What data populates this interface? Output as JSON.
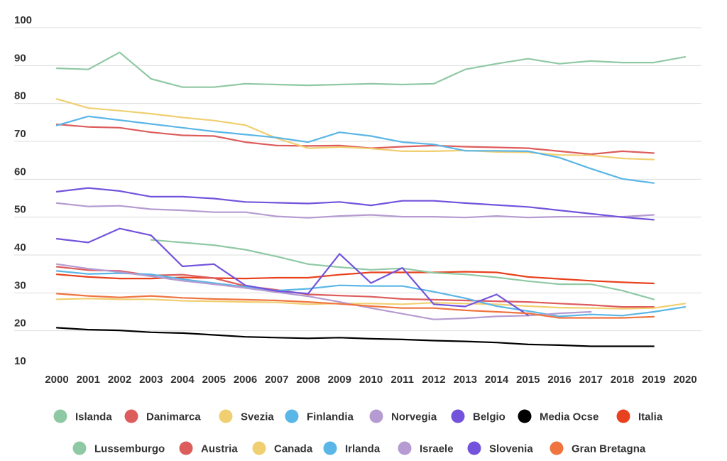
{
  "chart_data": {
    "type": "line",
    "title": "",
    "xlabel": "",
    "ylabel": "",
    "ylim": [
      10,
      100
    ],
    "yticks": [
      "100",
      "90",
      "80",
      "70",
      "60",
      "50",
      "40",
      "30",
      "20",
      "10"
    ],
    "x": [
      "2000",
      "2001",
      "2002",
      "2003",
      "2004",
      "2005",
      "2006",
      "2007",
      "2008",
      "2009",
      "2010",
      "2011",
      "2012",
      "2013",
      "2014",
      "2015",
      "2016",
      "2017",
      "2018",
      "2019",
      "2020"
    ],
    "grid": true,
    "legend_position": "bottom",
    "series": [
      {
        "name": "Islanda",
        "color": "#8fc9a4",
        "values": [
          89.3,
          89,
          93.5,
          86.5,
          84.3,
          84.3,
          85.2,
          85,
          84.8,
          85,
          85.2,
          85,
          85.2,
          89,
          90.5,
          91.8,
          90.5,
          91.2,
          90.8,
          90.8,
          92.3
        ]
      },
      {
        "name": "Danimarca",
        "color": "#dd5c5c",
        "values": [
          74.5,
          73.8,
          73.6,
          72.4,
          71.6,
          71.4,
          69.8,
          68.9,
          68.8,
          68.9,
          68.2,
          68.6,
          68.9,
          68.6,
          68.4,
          68.2,
          67.4,
          66.6,
          67.4,
          66.9,
          null
        ]
      },
      {
        "name": "Svezia",
        "color": "#f0cf70",
        "values": [
          81.2,
          78.8,
          78.1,
          77.3,
          76.3,
          75.5,
          74.3,
          70.8,
          68.2,
          68.5,
          68.1,
          67.4,
          67.4,
          67.6,
          67.2,
          67.1,
          66.4,
          66.3,
          65.5,
          65.2,
          null
        ]
      },
      {
        "name": "Finlandia",
        "color": "#5ab6e6",
        "values": [
          74.2,
          76.6,
          75.6,
          74.6,
          73.6,
          72.6,
          71.8,
          71,
          69.8,
          72.4,
          71.4,
          69.8,
          69.2,
          67.5,
          67.5,
          67.4,
          65.7,
          62.8,
          60.1,
          59,
          null
        ]
      },
      {
        "name": "Norvegia",
        "color": "#b59bd1",
        "values": [
          53.7,
          52.8,
          53,
          52.1,
          51.8,
          51.3,
          51.3,
          50.2,
          49.8,
          50.3,
          50.6,
          50.1,
          50.1,
          49.9,
          50.3,
          49.9,
          50.1,
          50.1,
          50.1,
          50.6,
          null
        ]
      },
      {
        "name": "Belgio",
        "color": "#7353dc",
        "values": [
          56.7,
          57.7,
          56.9,
          55.4,
          55.4,
          54.9,
          54,
          53.8,
          53.6,
          54,
          53.1,
          54.3,
          54.3,
          53.7,
          53.2,
          52.7,
          51.8,
          50.9,
          50,
          49.3,
          null
        ]
      },
      {
        "name": "Media Ocse",
        "color": "#000000",
        "values": [
          20.8,
          20.3,
          20.1,
          19.6,
          19.4,
          18.9,
          18.4,
          18.2,
          18,
          18.2,
          17.9,
          17.7,
          17.4,
          17.2,
          16.9,
          16.4,
          16.2,
          15.9,
          15.9,
          15.9,
          null
        ]
      },
      {
        "name": "Italia",
        "color": "#e8411d",
        "values": [
          34.9,
          34.2,
          33.8,
          33.8,
          34.1,
          33.9,
          33.8,
          34,
          34,
          34.8,
          35.4,
          35.4,
          35.4,
          35.6,
          35.4,
          34.2,
          33.7,
          33.2,
          32.8,
          32.5,
          null
        ]
      },
      {
        "name": "Lussemburgo",
        "color": "#8fc9a4",
        "values": [
          null,
          null,
          null,
          44,
          43.3,
          42.6,
          41.4,
          39.6,
          37.6,
          36.8,
          36.1,
          36.5,
          35.3,
          34.9,
          34.1,
          33.1,
          32.3,
          32.3,
          30.6,
          28.3,
          null
        ]
      },
      {
        "name": "Austria",
        "color": "#dd5c5c",
        "values": [
          36.9,
          36,
          35.8,
          34.6,
          34.8,
          33.9,
          31.8,
          30.8,
          29.6,
          29.3,
          29,
          28.4,
          28.2,
          28,
          27.8,
          27.6,
          27.2,
          26.8,
          26.3,
          26.3,
          null
        ]
      },
      {
        "name": "Canada",
        "color": "#f0cf70",
        "values": [
          28.3,
          28.5,
          28.3,
          28.3,
          27.9,
          27.8,
          27.6,
          27.5,
          27,
          27.2,
          27.2,
          27,
          27.4,
          27.2,
          27,
          26.5,
          26.1,
          26,
          25.8,
          26,
          27.2
        ]
      },
      {
        "name": "Irlanda",
        "color": "#5ab6e6",
        "values": [
          35.8,
          35,
          35.2,
          34.9,
          33.6,
          32.6,
          31.6,
          30.6,
          31.1,
          32,
          31.8,
          31.8,
          30.3,
          28.6,
          26.5,
          25.2,
          23.8,
          24.3,
          24,
          25,
          26.3
        ]
      },
      {
        "name": "Israele",
        "color": "#b59bd1",
        "values": [
          37.6,
          36.4,
          35.5,
          34.4,
          33.2,
          32.3,
          31.3,
          30.2,
          29.1,
          27.6,
          26,
          24.5,
          23,
          23.3,
          23.8,
          24,
          24.6,
          25,
          null,
          null,
          null
        ]
      },
      {
        "name": "Slovenia",
        "color": "#7353dc",
        "values": [
          44.3,
          43.3,
          47,
          45.2,
          37,
          37.6,
          32,
          30.5,
          29.8,
          40.3,
          32.6,
          36.6,
          27,
          26.4,
          29.6,
          24.1,
          null,
          null,
          null,
          null,
          null
        ]
      },
      {
        "name": "Gran Bretagna",
        "color": "#ef7440",
        "values": [
          29.8,
          29.2,
          28.8,
          29.2,
          28.7,
          28.4,
          28.2,
          28,
          27.6,
          27.1,
          26.5,
          26,
          26,
          25.4,
          25,
          24.6,
          23.4,
          23.4,
          23.4,
          23.7,
          null
        ]
      }
    ]
  }
}
